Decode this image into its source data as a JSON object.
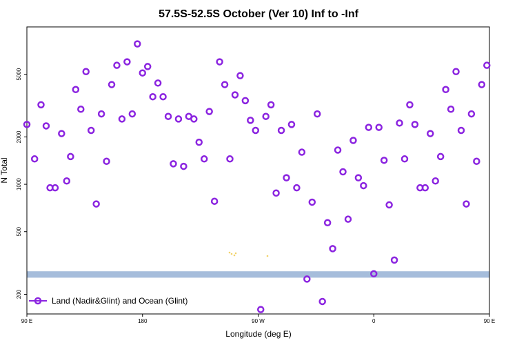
{
  "chart_data": {
    "type": "scatter",
    "title": "57.5S-52.5S October (Ver 10)   Inf to -Inf",
    "xlabel": "Longitude (deg E)",
    "ylabel": "N Total",
    "x_scale": "longitude",
    "y_scale": "log",
    "xlim": [
      90,
      450
    ],
    "ylim": [
      150,
      10000
    ],
    "x_ticks": [
      {
        "value": 90,
        "label": "90 E"
      },
      {
        "value": 180,
        "label": "180"
      },
      {
        "value": 270,
        "label": "90 W"
      },
      {
        "value": 360,
        "label": "0"
      },
      {
        "value": 450,
        "label": "90 E"
      },
      {
        "value": 540,
        "label": "180"
      }
    ],
    "y_ticks": [
      200,
      500,
      1000,
      2000,
      5000
    ],
    "grid": false,
    "legend": {
      "position": "bottom-left",
      "entries": [
        "Land (Nadir&Glint) and Ocean (Glint)"
      ]
    },
    "land_band": {
      "color": "#a6bddb",
      "y_range": [
        255,
        280
      ]
    },
    "colors": {
      "series": "#8b24e0",
      "land_band": "#a6bddb",
      "land_speck": "#f2d36b"
    },
    "series": [
      {
        "name": "Land (Nadir&Glint) and Ocean (Glint)",
        "x": [
          90,
          96,
          101,
          105,
          108,
          112,
          117,
          121,
          124,
          128,
          132,
          136,
          140,
          144,
          148,
          152,
          156,
          160,
          164,
          168,
          172,
          176,
          180,
          184,
          188,
          192,
          196,
          200,
          204,
          208,
          212,
          216,
          220,
          224,
          228,
          232,
          236,
          240,
          244,
          248,
          252,
          256,
          260,
          264,
          268,
          272,
          276,
          280,
          284,
          288,
          292,
          296,
          300,
          304,
          308,
          312,
          316,
          320,
          324,
          328,
          332,
          336,
          340,
          344,
          348,
          352,
          356,
          360,
          364,
          368,
          372,
          376,
          380,
          384,
          388,
          392,
          396,
          400,
          404,
          408,
          412,
          416,
          420,
          424,
          428,
          432,
          436,
          440,
          444,
          448
        ],
        "y": [
          2400,
          1450,
          3200,
          2350,
          950,
          950,
          2100,
          1050,
          1500,
          4000,
          3000,
          5200,
          2200,
          750,
          2800,
          1400,
          4300,
          5700,
          2600,
          6000,
          2800,
          7800,
          5100,
          5600,
          3600,
          4400,
          3600,
          2700,
          1350,
          2600,
          1300,
          2700,
          2600,
          1850,
          1450,
          2900,
          780,
          6000,
          4300,
          1450,
          3700,
          4900,
          3400,
          2550,
          2200,
          160,
          2700,
          3200,
          880,
          2200,
          1100,
          2400,
          950,
          1600,
          250,
          770,
          2800,
          180,
          570,
          390,
          1650,
          1200,
          600,
          1900,
          1100,
          980,
          2300,
          270,
          2300,
          1420,
          740,
          330,
          2450,
          1450,
          3200,
          2400,
          950,
          950,
          2100,
          1050,
          1500,
          4000,
          3000,
          5200,
          2200,
          750,
          2800,
          1400,
          4300,
          5700
        ]
      }
    ]
  }
}
